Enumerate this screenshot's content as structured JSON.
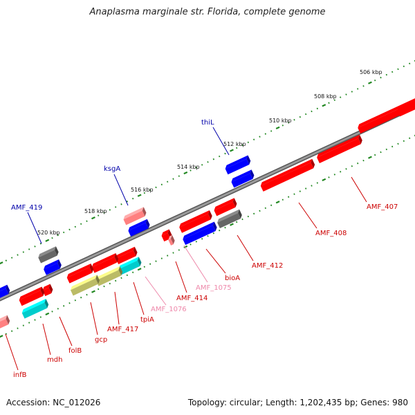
{
  "title": "Anaplasma marginale str. Florida, complete genome",
  "footer": {
    "accession": "Accession: NC_012026",
    "summary": "Topology: circular; Length: 1,202,435 bp; Genes: 980"
  },
  "colors": {
    "backbone": "#808080",
    "forward_gene": "#ff0000",
    "reverse_gene": "#0000ff",
    "pseudo_gene": "#ff8080",
    "rna_gene": "#00cccc",
    "other_gene": "#666666",
    "misc_gene": "#bbbb66",
    "tick": "#228822",
    "label_forward": "#cc0000",
    "label_reverse": "#0000aa",
    "label_pseudo": "#ee88aa"
  },
  "scale_labels": [
    "506 kbp",
    "508 kbp",
    "510 kbp",
    "512 kbp",
    "514 kbp",
    "516 kbp",
    "518 kbp",
    "520 kbp"
  ],
  "gene_labels": {
    "forward": [
      "AMF_407",
      "AMF_408",
      "AMF_412",
      "bioA",
      "AMF_414",
      "AMF_417",
      "tpiA",
      "gcp",
      "folB",
      "mdh",
      "infB"
    ],
    "reverse": [
      "thiL",
      "ksgA",
      "AMF_419"
    ],
    "pseudo": [
      "AMF_1075",
      "AMF_1076"
    ]
  }
}
